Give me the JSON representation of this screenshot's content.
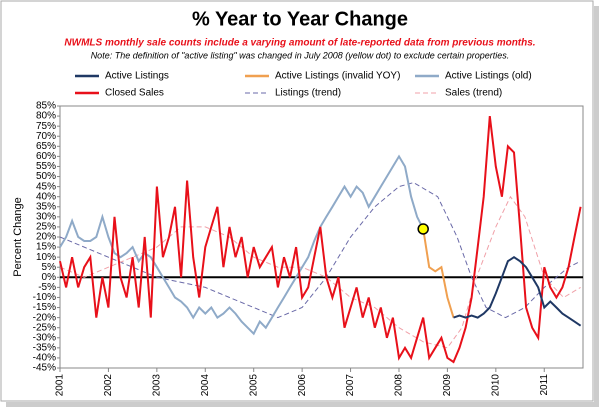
{
  "chart_data": {
    "type": "line",
    "title": "% Year to Year Change",
    "subtitle": "NWMLS monthly sale counts include a varying amount of late-reported data from previous months.",
    "note": "Note: The definition of \"active listing\" was changed in July 2008  (yellow dot) to exclude certain properties.",
    "y_label": "Percent Change",
    "xlim": [
      2001,
      2011.8
    ],
    "xticks": [
      2001,
      2002,
      2003,
      2004,
      2005,
      2006,
      2007,
      2008,
      2009,
      2010,
      2011
    ],
    "ylim": [
      -45,
      85
    ],
    "yticks": [
      {
        "value": 85,
        "label": "85%"
      },
      {
        "value": 80,
        "label": "80%"
      },
      {
        "value": 75,
        "label": "75%"
      },
      {
        "value": 70,
        "label": "70%"
      },
      {
        "value": 65,
        "label": "65%"
      },
      {
        "value": 60,
        "label": "60%"
      },
      {
        "value": 55,
        "label": "55%"
      },
      {
        "value": 50,
        "label": "50%"
      },
      {
        "value": 45,
        "label": "45%"
      },
      {
        "value": 40,
        "label": "40%"
      },
      {
        "value": 35,
        "label": "35%"
      },
      {
        "value": 30,
        "label": "30%"
      },
      {
        "value": 25,
        "label": "25%"
      },
      {
        "value": 20,
        "label": "20%"
      },
      {
        "value": 15,
        "label": "15%"
      },
      {
        "value": 10,
        "label": "10%"
      },
      {
        "value": 5,
        "label": "5%"
      },
      {
        "value": 0,
        "label": "0%"
      },
      {
        "value": -5,
        "label": "-5%"
      },
      {
        "value": -10,
        "label": "-10%"
      },
      {
        "value": -15,
        "label": "-15%"
      },
      {
        "value": -20,
        "label": "-20%"
      },
      {
        "value": -25,
        "label": "-25%"
      },
      {
        "value": -30,
        "label": "-30%"
      },
      {
        "value": -35,
        "label": "-35%"
      },
      {
        "value": -40,
        "label": "-40%"
      },
      {
        "value": -45,
        "label": "-45%"
      }
    ],
    "series": [
      {
        "name": "Active Listings",
        "color": "#1f3864",
        "dashed": false,
        "x": [
          2009.125,
          2009.25,
          2009.375,
          2009.5,
          2009.625,
          2009.75,
          2009.875,
          2010,
          2010.125,
          2010.25,
          2010.375,
          2010.5,
          2010.625,
          2010.75,
          2010.875,
          2011,
          2011.125,
          2011.25,
          2011.375,
          2011.5,
          2011.625,
          2011.75
        ],
        "values": [
          -20,
          -19,
          -20,
          -19,
          -20,
          -18,
          -15,
          -8,
          0,
          8,
          10,
          8,
          5,
          0,
          -5,
          -15,
          -12,
          -15,
          -18,
          -20,
          -22,
          -24
        ]
      },
      {
        "name": "Active Listings (invalid YOY)",
        "color": "#f0a050",
        "dashed": false,
        "x": [
          2008.5,
          2008.625,
          2008.75,
          2008.875,
          2009,
          2009.125
        ],
        "values": [
          24,
          5,
          3,
          5,
          -10,
          -20
        ]
      },
      {
        "name": "Active Listings (old)",
        "color": "#8faac8",
        "dashed": false,
        "x": [
          2001,
          2001.125,
          2001.25,
          2001.375,
          2001.5,
          2001.625,
          2001.75,
          2001.875,
          2002,
          2002.125,
          2002.25,
          2002.375,
          2002.5,
          2002.625,
          2002.75,
          2002.875,
          2003,
          2003.125,
          2003.25,
          2003.375,
          2003.5,
          2003.625,
          2003.75,
          2003.875,
          2004,
          2004.125,
          2004.25,
          2004.375,
          2004.5,
          2004.625,
          2004.75,
          2004.875,
          2005,
          2005.125,
          2005.25,
          2005.375,
          2005.5,
          2005.625,
          2005.75,
          2005.875,
          2006,
          2006.125,
          2006.25,
          2006.375,
          2006.5,
          2006.625,
          2006.75,
          2006.875,
          2007,
          2007.125,
          2007.25,
          2007.375,
          2007.5,
          2007.625,
          2007.75,
          2007.875,
          2008,
          2008.125,
          2008.25,
          2008.375,
          2008.5
        ],
        "values": [
          15,
          20,
          28,
          20,
          18,
          18,
          20,
          30,
          20,
          12,
          10,
          12,
          15,
          8,
          12,
          10,
          5,
          0,
          -5,
          -10,
          -12,
          -15,
          -20,
          -15,
          -18,
          -15,
          -20,
          -18,
          -15,
          -18,
          -22,
          -25,
          -28,
          -22,
          -25,
          -20,
          -15,
          -10,
          -5,
          0,
          5,
          10,
          18,
          25,
          30,
          35,
          40,
          45,
          40,
          45,
          42,
          35,
          40,
          45,
          50,
          55,
          60,
          55,
          40,
          30,
          24
        ]
      },
      {
        "name": "Closed Sales",
        "color": "#e8101a",
        "dashed": false,
        "x": [
          2001,
          2001.125,
          2001.25,
          2001.375,
          2001.5,
          2001.625,
          2001.75,
          2001.875,
          2002,
          2002.125,
          2002.25,
          2002.375,
          2002.5,
          2002.625,
          2002.75,
          2002.875,
          2003,
          2003.125,
          2003.25,
          2003.375,
          2003.5,
          2003.625,
          2003.75,
          2003.875,
          2004,
          2004.125,
          2004.25,
          2004.375,
          2004.5,
          2004.625,
          2004.75,
          2004.875,
          2005,
          2005.125,
          2005.25,
          2005.375,
          2005.5,
          2005.625,
          2005.75,
          2005.875,
          2006,
          2006.125,
          2006.25,
          2006.375,
          2006.5,
          2006.625,
          2006.75,
          2006.875,
          2007,
          2007.125,
          2007.25,
          2007.375,
          2007.5,
          2007.625,
          2007.75,
          2007.875,
          2008,
          2008.125,
          2008.25,
          2008.375,
          2008.5,
          2008.625,
          2008.75,
          2008.875,
          2009,
          2009.125,
          2009.25,
          2009.375,
          2009.5,
          2009.625,
          2009.75,
          2009.875,
          2010,
          2010.125,
          2010.25,
          2010.375,
          2010.5,
          2010.625,
          2010.75,
          2010.875,
          2011,
          2011.125,
          2011.25,
          2011.375,
          2011.5,
          2011.625,
          2011.75
        ],
        "values": [
          8,
          -5,
          10,
          -5,
          5,
          10,
          -20,
          0,
          -15,
          30,
          0,
          -10,
          10,
          -15,
          20,
          -20,
          45,
          10,
          20,
          35,
          0,
          48,
          10,
          -10,
          15,
          25,
          35,
          5,
          25,
          10,
          20,
          0,
          15,
          5,
          10,
          15,
          -5,
          10,
          0,
          15,
          -10,
          -5,
          10,
          25,
          0,
          -10,
          0,
          -25,
          -15,
          -5,
          -20,
          -10,
          -25,
          -15,
          -30,
          -20,
          -40,
          -35,
          -40,
          -30,
          -20,
          -40,
          -35,
          -30,
          -40,
          -42,
          -35,
          -25,
          -10,
          15,
          40,
          80,
          55,
          40,
          65,
          62,
          25,
          -15,
          -25,
          -30,
          5,
          -5,
          -10,
          -5,
          5,
          20,
          35
        ]
      },
      {
        "name": "Listings (trend)",
        "color": "#6a6aa8",
        "dashed": true,
        "x": [
          2001,
          2002,
          2002.5,
          2003,
          2004,
          2004.5,
          2005,
          2005.5,
          2006,
          2006.5,
          2007,
          2007.5,
          2008,
          2008.3,
          2008.8,
          2009.2,
          2009.5,
          2009.8,
          2010.2,
          2010.6,
          2011,
          2011.5,
          2011.75
        ],
        "values": [
          20,
          10,
          5,
          0,
          -5,
          -10,
          -15,
          -20,
          -15,
          0,
          20,
          35,
          45,
          47,
          40,
          20,
          0,
          -15,
          -20,
          -15,
          -5,
          5,
          8
        ]
      },
      {
        "name": "Sales (trend)",
        "color": "#f0a0a8",
        "dashed": true,
        "x": [
          2001,
          2001.5,
          2002,
          2002.5,
          2003,
          2003.5,
          2004,
          2004.5,
          2005,
          2005.5,
          2006,
          2006.5,
          2007,
          2007.5,
          2008,
          2008.5,
          2009,
          2009.3,
          2009.6,
          2010,
          2010.3,
          2010.6,
          2011,
          2011.4,
          2011.75
        ],
        "values": [
          5,
          0,
          5,
          10,
          15,
          25,
          25,
          20,
          10,
          5,
          5,
          0,
          -10,
          -15,
          -25,
          -32,
          -35,
          -25,
          0,
          25,
          40,
          30,
          0,
          -10,
          -5
        ]
      }
    ],
    "highlight": {
      "x": 2008.5,
      "y": 24,
      "color": "#ffff00"
    }
  }
}
